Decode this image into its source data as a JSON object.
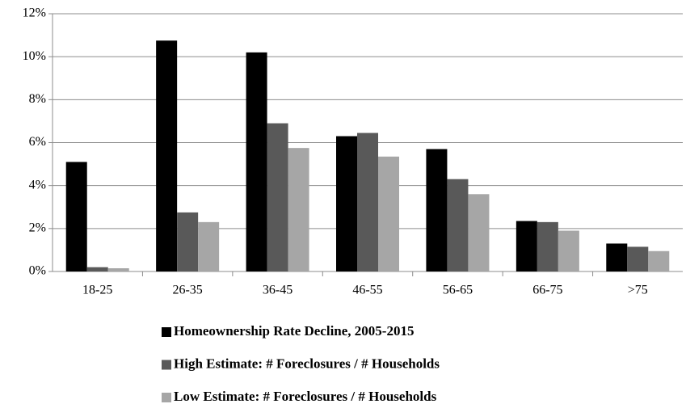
{
  "chart_data": {
    "type": "bar",
    "categories": [
      "18-25",
      "26-35",
      "36-45",
      "46-55",
      "56-65",
      "66-75",
      ">75"
    ],
    "series": [
      {
        "name": "Homeownership Rate Decline, 2005-2015",
        "color": "#000000",
        "values": [
          5.1,
          10.75,
          10.2,
          6.3,
          5.7,
          2.35,
          1.3
        ]
      },
      {
        "name": "High Estimate: # Foreclosures / # Households",
        "color": "#595959",
        "values": [
          0.2,
          2.75,
          6.9,
          6.45,
          4.3,
          2.3,
          1.15
        ]
      },
      {
        "name": "Low Estimate: # Foreclosures / # Households",
        "color": "#a6a6a6",
        "values": [
          0.15,
          2.3,
          5.75,
          5.35,
          3.6,
          1.9,
          0.95
        ]
      }
    ],
    "ylim": [
      0,
      12
    ],
    "yticks": [
      {
        "value": 0,
        "label": "0%"
      },
      {
        "value": 2,
        "label": "2%"
      },
      {
        "value": 4,
        "label": "4%"
      },
      {
        "value": 6,
        "label": "6%"
      },
      {
        "value": 8,
        "label": "8%"
      },
      {
        "value": 10,
        "label": "10%"
      },
      {
        "value": 12,
        "label": "12%"
      }
    ],
    "grid": true
  }
}
